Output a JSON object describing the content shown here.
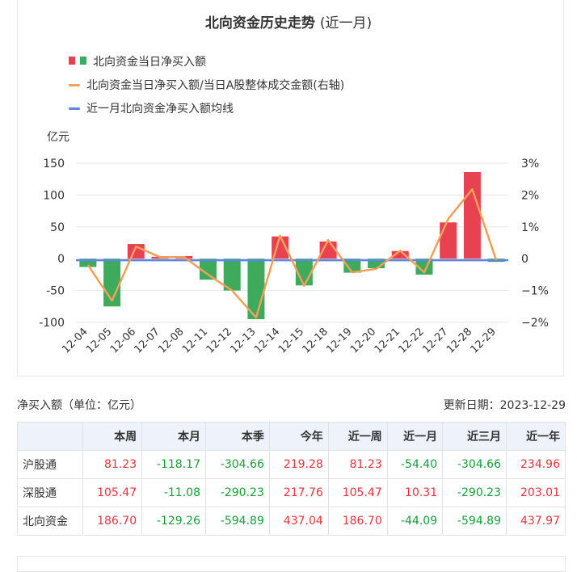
{
  "chart": {
    "title": "北向资金历史走势",
    "title_sub": "(近一月)",
    "legend": {
      "bar": "北向资金当日净买入额",
      "line": "北向资金当日净买入额/当日A股整体成交金额(右轴)",
      "avg": "近一月北向资金净买入额均线"
    },
    "unit_label": "亿元",
    "colors": {
      "positive": "#e8414f",
      "negative": "#3daa5c",
      "ratio_line": "#f0a05a",
      "avg_line": "#5b86e5"
    }
  },
  "chart_data": {
    "type": "bar",
    "categories": [
      "12-04",
      "12-05",
      "12-06",
      "12-07",
      "12-08",
      "12-11",
      "12-12",
      "12-13",
      "12-14",
      "12-15",
      "12-18",
      "12-19",
      "12-20",
      "12-21",
      "12-22",
      "12-27",
      "12-28",
      "12-29"
    ],
    "series": [
      {
        "name": "北向资金当日净买入额",
        "type": "bar",
        "axis": "left",
        "values": [
          -13,
          -75,
          23,
          3,
          4,
          -33,
          -50,
          -95,
          35,
          -42,
          27,
          -22,
          -15,
          12,
          -25,
          57,
          136,
          -5
        ]
      },
      {
        "name": "北向资金当日净买入额/当日A股整体成交金额(右轴)",
        "type": "line",
        "axis": "right",
        "values": [
          -0.2,
          -1.32,
          0.38,
          0.05,
          0.05,
          -0.5,
          -1.0,
          -1.85,
          0.72,
          -0.85,
          0.58,
          -0.43,
          -0.32,
          0.25,
          -0.43,
          1.25,
          2.18,
          -0.05
        ]
      },
      {
        "name": "近一月北向资金净买入额均线",
        "type": "line",
        "axis": "left",
        "values": [
          -2.45,
          -2.45,
          -2.45,
          -2.45,
          -2.45,
          -2.45,
          -2.45,
          -2.45,
          -2.45,
          -2.45,
          -2.45,
          -2.45,
          -2.45,
          -2.45,
          -2.45,
          -2.45,
          -2.45,
          -2.45
        ]
      }
    ],
    "y_left": {
      "min": -100,
      "max": 150,
      "ticks": [
        -100,
        -50,
        0,
        50,
        100,
        150
      ]
    },
    "y_right": {
      "min": -2,
      "max": 3,
      "ticks": [
        "−2%",
        "−1%",
        "0",
        "1%",
        "2%",
        "3%"
      ]
    },
    "grid": true,
    "legend_position": "top-left"
  },
  "table": {
    "caption": "净买入额（单位：亿元）",
    "updated": "更新日期：2023-12-29",
    "columns": [
      "",
      "本周",
      "本月",
      "本季",
      "今年",
      "近一周",
      "近一月",
      "近三月",
      "近一年"
    ],
    "rows": [
      {
        "name": "沪股通",
        "values": [
          "81.23",
          "-118.17",
          "-304.66",
          "219.28",
          "81.23",
          "-54.40",
          "-304.66",
          "234.96"
        ]
      },
      {
        "name": "深股通",
        "values": [
          "105.47",
          "-11.08",
          "-290.23",
          "217.76",
          "105.47",
          "10.31",
          "-290.23",
          "203.01"
        ]
      },
      {
        "name": "北向资金",
        "values": [
          "186.70",
          "-129.26",
          "-594.89",
          "437.04",
          "186.70",
          "-44.09",
          "-594.89",
          "437.97"
        ]
      }
    ]
  }
}
